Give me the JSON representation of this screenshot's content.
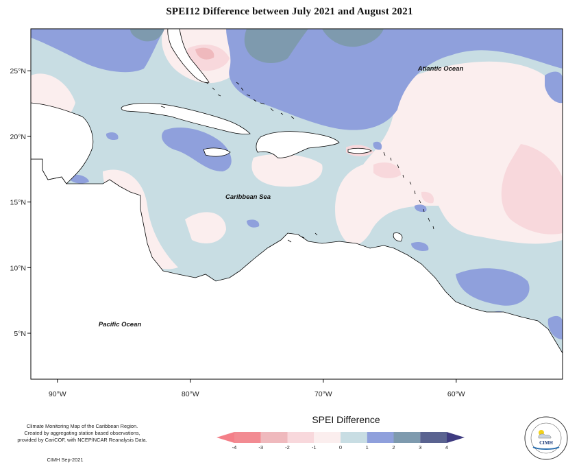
{
  "title": "SPEI12 Difference between July 2021 and August 2021",
  "map": {
    "longitude_range": [
      -92,
      -52
    ],
    "latitude_range": [
      1.5,
      28.2
    ],
    "longitude_ticks": [
      {
        "value": -90,
        "label": "90°W"
      },
      {
        "value": -80,
        "label": "80°W"
      },
      {
        "value": -70,
        "label": "70°W"
      },
      {
        "value": -60,
        "label": "60°W"
      }
    ],
    "latitude_ticks": [
      {
        "value": 25,
        "label": "25°N"
      },
      {
        "value": 20,
        "label": "20°N"
      },
      {
        "value": 15,
        "label": "15°N"
      },
      {
        "value": 10,
        "label": "10°N"
      },
      {
        "value": 5,
        "label": "5°N"
      }
    ],
    "labels": {
      "atlantic": "Atlantic Ocean",
      "caribbean": "Caribbean Sea",
      "pacific": "Pacific Ocean"
    }
  },
  "credit": {
    "lines": [
      "Climate Monitoring Map of the Caribbean Region.",
      "Created by aggregating station based observations,",
      "provided by CariCOF, with NCEP/NCAR Reanalysis Data."
    ],
    "date": "CIMH Sep-2021"
  },
  "legend": {
    "title": "SPEI Difference",
    "ticks": [
      "-4",
      "-3",
      "-2",
      "-1",
      "0",
      "1",
      "2",
      "3",
      "4"
    ],
    "bins": [
      {
        "from": -4,
        "to": -3,
        "color": "#f28b92"
      },
      {
        "from": -3,
        "to": -2,
        "color": "#efb9bd"
      },
      {
        "from": -2,
        "to": -1,
        "color": "#f8d8dc"
      },
      {
        "from": -1,
        "to": 0,
        "color": "#fbeeee"
      },
      {
        "from": 0,
        "to": 1,
        "color": "#c8dde3"
      },
      {
        "from": 1,
        "to": 2,
        "color": "#8fa0dc"
      },
      {
        "from": 2,
        "to": 3,
        "color": "#7e9aae"
      },
      {
        "from": 3,
        "to": 4,
        "color": "#5a6390"
      }
    ],
    "under_color": "#f47f88",
    "over_color": "#3e3b80"
  },
  "logo": {
    "text": "CIMH"
  }
}
